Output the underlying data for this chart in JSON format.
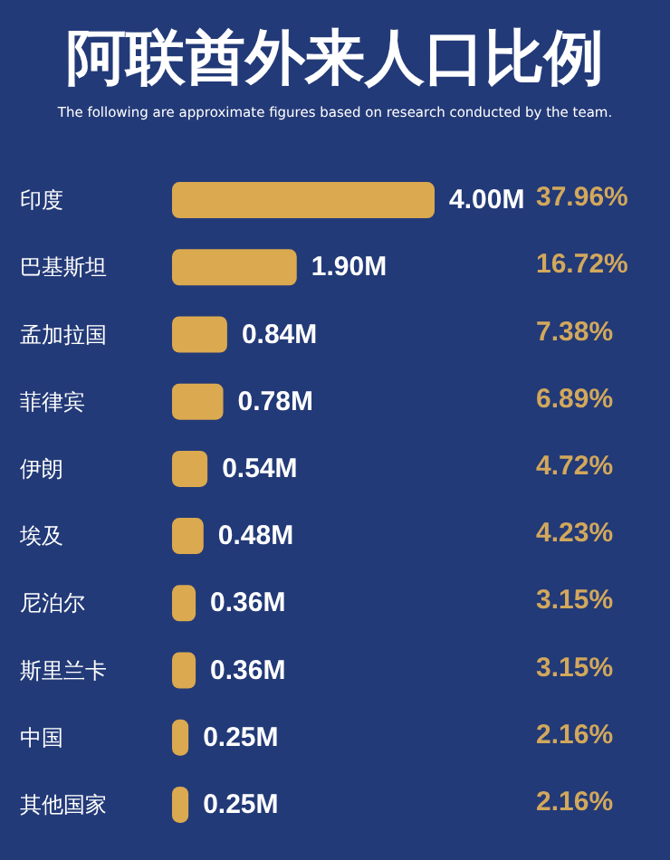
{
  "chart_data": {
    "type": "bar",
    "orientation": "horizontal",
    "title": "阿联酋外来人口比例",
    "subtitle": "The following are approximate figures based on research conducted by the team.",
    "categories": [
      "印度",
      "巴基斯坦",
      "孟加拉国",
      "菲律宾",
      "伊朗",
      "埃及",
      "尼泊尔",
      "斯里兰卡",
      "中国",
      "其他国家"
    ],
    "values": [
      4.0,
      1.9,
      0.84,
      0.78,
      0.54,
      0.48,
      0.36,
      0.36,
      0.25,
      0.25
    ],
    "value_labels": [
      "4.00M",
      "1.90M",
      "0.84M",
      "0.78M",
      "0.54M",
      "0.48M",
      "0.36M",
      "0.36M",
      "0.25M",
      "0.25M"
    ],
    "color": "#dba94f",
    "xlim": [
      0,
      4.0
    ],
    "tick_labels": "y",
    "grid": false,
    "annotations": [
      "37.96%",
      "16.72%",
      "7.38%",
      "6.89%",
      "4.72%",
      "4.23%",
      "3.15%",
      "3.15%",
      "2.16%",
      "2.16%"
    ]
  }
}
